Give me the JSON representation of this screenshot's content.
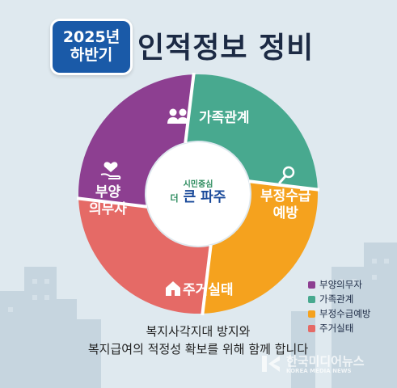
{
  "badge": {
    "year": "2025년",
    "half": "하반기"
  },
  "title": "인적정보 정비",
  "segments": [
    {
      "id": "family",
      "label_lines": [
        "가족관계"
      ],
      "color": "#48a98f",
      "icon": "people-icon"
    },
    {
      "id": "fraud",
      "label_lines": [
        "부정수급",
        "예방"
      ],
      "color": "#f5a21e",
      "icon": "magnifier-icon"
    },
    {
      "id": "housing",
      "label_lines": [
        "주거실태"
      ],
      "color": "#e56a66",
      "icon": "house-icon"
    },
    {
      "id": "support",
      "label_lines": [
        "부양",
        "의무자"
      ],
      "color": "#8d3f91",
      "icon": "heart-hand-icon"
    }
  ],
  "center": {
    "slogan_top": "시민중심",
    "slogan_prefix": "더",
    "slogan_main": "큰 파주"
  },
  "legend": [
    {
      "label": "부양의무자",
      "color": "#8d3f91"
    },
    {
      "label": "가족관계",
      "color": "#48a98f"
    },
    {
      "label": "부정수급예방",
      "color": "#f5a21e"
    },
    {
      "label": "주거실태",
      "color": "#e56a66"
    }
  ],
  "caption": {
    "line1": "복지사각지대 방지와",
    "line2": "복지급여의 적정성 확보를 위해 함께 합니다"
  },
  "watermark": {
    "main": "한국미디어뉴스",
    "sub": "KOREA MEDIA NEWS"
  }
}
